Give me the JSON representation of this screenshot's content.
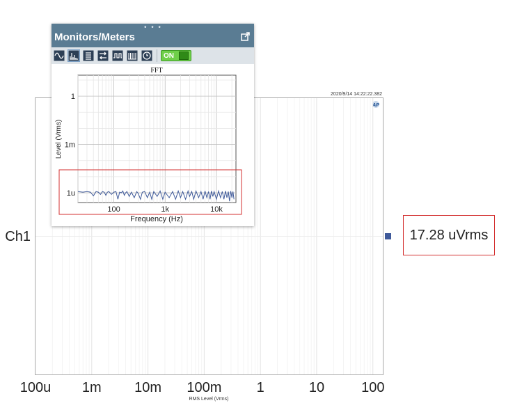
{
  "timestamp": "2020/9/14 14:22:22.382",
  "logo": "AP",
  "channel_label": "Ch1",
  "readout": "17.28 uVrms",
  "panel": {
    "title": "Monitors/Meters",
    "toolbar_icons": [
      "sine-wave-icon",
      "fft-icon",
      "list-icon",
      "swap-icon",
      "square-wave-icon",
      "bars-icon",
      "clock-icon"
    ],
    "on_label": "ON"
  },
  "colors": {
    "header": "#5a7c93",
    "trace": "#3f5a9a",
    "highlight": "#d32f2f",
    "marker": "#3f5a9a"
  },
  "chart_data": [
    {
      "type": "scatter",
      "xlabel": "RMS Level (Vrms)",
      "ylabel": "",
      "x_scale": "log",
      "x_ticks": [
        "100u",
        "1m",
        "10m",
        "100m",
        "1",
        "10",
        "100"
      ],
      "xlim": [
        0.0001,
        150
      ],
      "categories": [
        "Ch1"
      ],
      "values": [
        1.728e-05
      ],
      "grid": true
    },
    {
      "type": "line",
      "title": "FFT",
      "xlabel": "Frequency (Hz)",
      "ylabel": "Level (Vrms)",
      "x_scale": "log",
      "y_scale": "log",
      "x_ticks": [
        "100",
        "1k",
        "10k"
      ],
      "y_ticks": [
        "1",
        "1m",
        "1u"
      ],
      "xlim": [
        20,
        24000
      ],
      "ylim": [
        2.5e-07,
        20
      ],
      "grid": true,
      "series": [
        {
          "x": [
            20,
            25,
            30,
            35,
            40,
            45,
            50,
            55,
            60,
            65,
            70,
            75,
            80,
            90,
            100,
            110,
            120,
            130,
            140,
            150,
            160,
            170,
            180,
            200,
            220,
            250,
            280,
            300,
            330,
            360,
            400,
            450,
            500,
            550,
            600,
            700,
            800,
            900,
            1000,
            1200,
            1400,
            1600,
            1800,
            2000,
            2200,
            2500,
            2800,
            3000,
            3300,
            3600,
            4000,
            4500,
            5000,
            5500,
            6000,
            6500,
            7000,
            7500,
            8000,
            8500,
            9000,
            10000,
            11000,
            12000,
            13000,
            14000,
            15000,
            16000,
            17000,
            18000,
            19000,
            20000,
            21000,
            22000
          ],
          "values": [
            1.2e-06,
            1.1e-06,
            1.2e-06,
            1.1e-06,
            6.5e-07,
            1.2e-06,
            1.1e-06,
            8e-07,
            1.2e-06,
            1.1e-06,
            7e-07,
            1.1e-06,
            1.2e-06,
            8e-07,
            1.1e-06,
            1.2e-06,
            4e-07,
            1.1e-06,
            1e-06,
            1.3e-06,
            7e-07,
            1e-06,
            1.2e-06,
            6e-07,
            1.1e-06,
            5e-07,
            1.2e-06,
            9e-07,
            4e-07,
            1.1e-06,
            1.2e-06,
            5e-07,
            1.1e-06,
            4e-07,
            1.2e-06,
            6e-07,
            1.3e-06,
            4e-07,
            1.1e-06,
            5e-07,
            1.2e-06,
            4e-07,
            1.3e-06,
            5e-07,
            1.2e-06,
            4e-07,
            1.3e-06,
            6e-07,
            1.2e-06,
            4e-07,
            1.3e-06,
            5e-07,
            1.2e-06,
            4e-07,
            1.3e-06,
            5e-07,
            1.2e-06,
            4e-07,
            1.3e-06,
            6e-07,
            1.2e-06,
            4e-07,
            1.3e-06,
            5e-07,
            1.2e-06,
            4e-07,
            1.3e-06,
            5e-07,
            1.2e-06,
            3e-07,
            1.3e-06,
            5e-07,
            1.2e-06,
            4e-07
          ]
        }
      ]
    }
  ]
}
